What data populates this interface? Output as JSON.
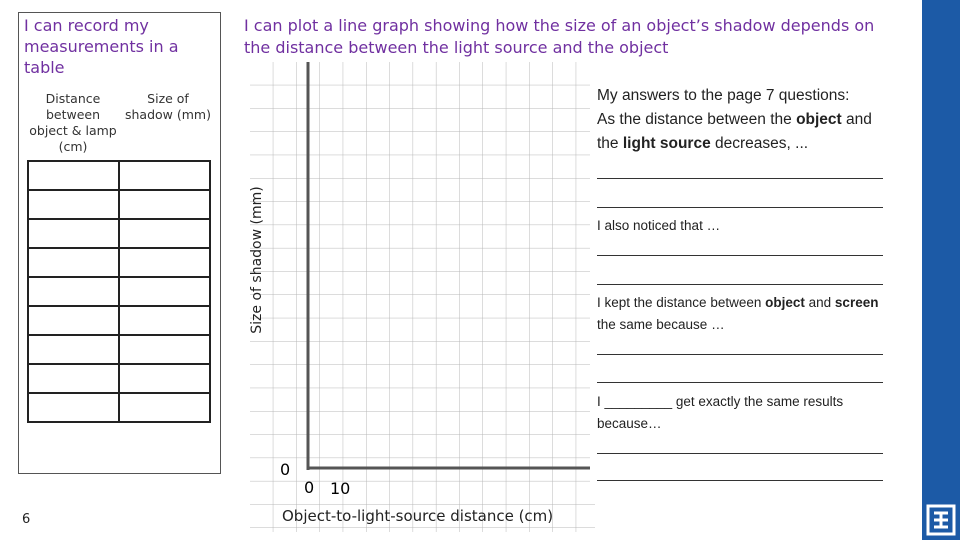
{
  "page_number": "6",
  "table_panel": {
    "title": "I can record my measurements in a table",
    "headers": [
      "Distance between object & lamp (cm)",
      "Size of shadow (mm)"
    ]
  },
  "graph_panel": {
    "title": "I can plot a line graph showing how the size of an object’s shadow depends on the distance between the light source and the object",
    "y_axis_label": "Size of shadow (mm)",
    "x_axis_label": "Object-to-light-source distance (cm)",
    "y_origin_label": "0",
    "x_tick_labels": [
      "0",
      "10"
    ]
  },
  "answers": {
    "heading": "My answers to the page 7 questions:",
    "q1": [
      "As the distance between the ",
      "object",
      " and the ",
      "light source",
      " decreases, ..."
    ],
    "q2": "I also noticed that …",
    "q3": [
      "I kept the distance between ",
      "object",
      " and ",
      "screen",
      " the same because …"
    ],
    "q4": "I _________ get exactly the same results because…"
  }
}
